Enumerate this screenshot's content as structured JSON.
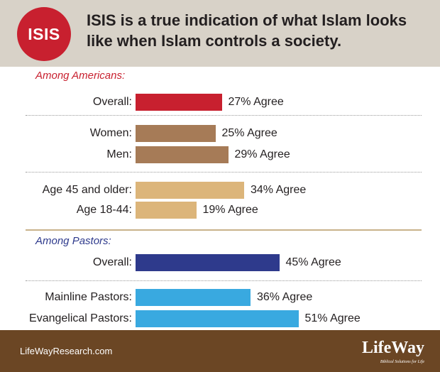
{
  "badge": "ISIS",
  "title": "ISIS is a true indication of what Islam looks like when Islam controls a society.",
  "sections": [
    {
      "label": "Among Americans:",
      "color": "#c8202f"
    },
    {
      "label": "Among Pastors:",
      "color": "#2e3a8c"
    }
  ],
  "chart_data": {
    "type": "bar",
    "orientation": "horizontal",
    "value_suffix": "% Agree",
    "categories": [
      "Overall:",
      "Women:",
      "Men:",
      "Age 45 and older:",
      "Age 18-44:",
      "Overall:",
      "Mainline Pastors:",
      "Evangelical Pastors:"
    ],
    "values": [
      27,
      25,
      29,
      34,
      19,
      45,
      36,
      51
    ],
    "value_labels": [
      "27% Agree",
      "25% Agree",
      "29% Agree",
      "34% Agree",
      "19% Agree",
      "45% Agree",
      "36% Agree",
      "51% Agree"
    ],
    "colors": [
      "#c8202f",
      "#a67b57",
      "#a67b57",
      "#dcb57a",
      "#dcb57a",
      "#2e3a8c",
      "#39a9e0",
      "#39a9e0"
    ],
    "xlim": [
      0,
      51
    ]
  },
  "footer": {
    "url": "LifeWayResearch.com",
    "logo": "LifeWay",
    "tagline": "Biblical Solutions for Life"
  }
}
